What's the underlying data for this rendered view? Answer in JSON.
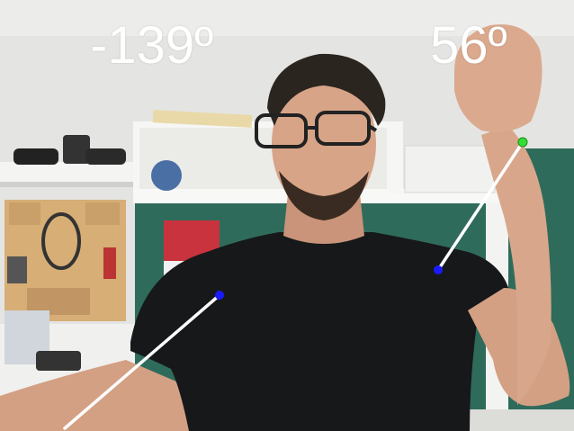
{
  "overlay": {
    "left_angle": "-139º",
    "right_angle": "56º",
    "line_color": "#ffffff",
    "joint_color": "#1a1aff",
    "wrist_color": "#33dd33"
  },
  "scene": {
    "wall_color": "#e6e6e4",
    "shirt_color": "#17181a",
    "skin_color": "#d9a98a",
    "shelf_color": "#f3f3f1",
    "pegboard_color": "#d9b27a",
    "green_panel_color": "#2f6b5b"
  }
}
